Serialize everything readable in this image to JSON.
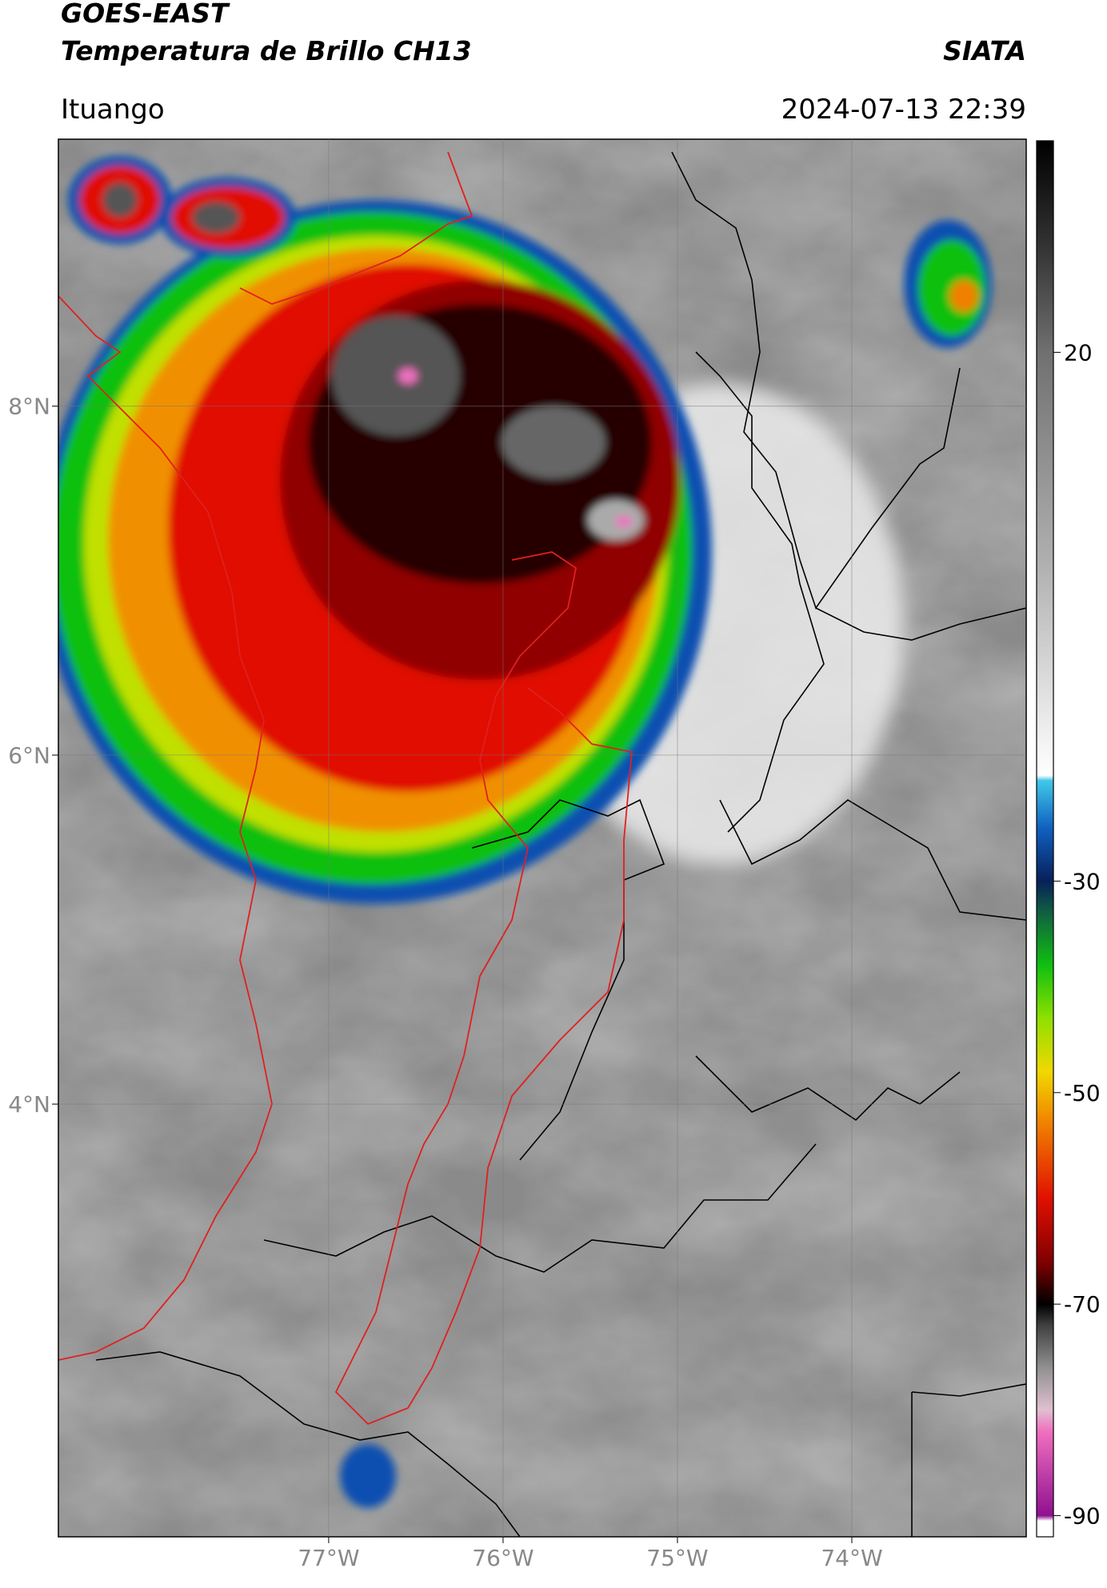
{
  "header": {
    "satellite": "GOES-EAST",
    "product": "Temperatura de Brillo CH13",
    "agency": "SIATA",
    "location": "Ituango",
    "timestamp": "2024-07-13 22:39"
  },
  "map": {
    "xlim": [
      -78.55,
      -73.0
    ],
    "ylim": [
      1.52,
      9.53
    ],
    "xticks": [
      {
        "value": -77,
        "label": "77°W"
      },
      {
        "value": -76,
        "label": "76°W"
      },
      {
        "value": -75,
        "label": "75°W"
      },
      {
        "value": -74,
        "label": "74°W"
      }
    ],
    "yticks": [
      {
        "value": 8,
        "label": "8°N"
      },
      {
        "value": 6,
        "label": "6°N"
      },
      {
        "value": 4,
        "label": "4°N"
      }
    ],
    "grid": true
  },
  "colorbar": {
    "lim": [
      -92,
      40
    ],
    "ticks": [
      20,
      -30,
      -50,
      -70,
      -90
    ],
    "colormap": [
      {
        "value": 40,
        "color": "#000000"
      },
      {
        "value": 30,
        "color": "#333333"
      },
      {
        "value": 20,
        "color": "#707070"
      },
      {
        "value": 0,
        "color": "#b0b0b0"
      },
      {
        "value": -20,
        "color": "#ffffff"
      },
      {
        "value": -20.5,
        "color": "#40c8e8"
      },
      {
        "value": -25,
        "color": "#1060c0"
      },
      {
        "value": -30,
        "color": "#08205a"
      },
      {
        "value": -33,
        "color": "#106040"
      },
      {
        "value": -38,
        "color": "#10c010"
      },
      {
        "value": -43,
        "color": "#90e000"
      },
      {
        "value": -48,
        "color": "#f0d800"
      },
      {
        "value": -53,
        "color": "#f08000"
      },
      {
        "value": -60,
        "color": "#e01000"
      },
      {
        "value": -66,
        "color": "#800000"
      },
      {
        "value": -70,
        "color": "#000000"
      },
      {
        "value": -72,
        "color": "#404040"
      },
      {
        "value": -76,
        "color": "#909090"
      },
      {
        "value": -80,
        "color": "#e0c0d0"
      },
      {
        "value": -82,
        "color": "#f070c0"
      },
      {
        "value": -90,
        "color": "#901090"
      },
      {
        "value": -90.5,
        "color": "#ffffff"
      },
      {
        "value": -92,
        "color": "#ffffff"
      }
    ]
  }
}
